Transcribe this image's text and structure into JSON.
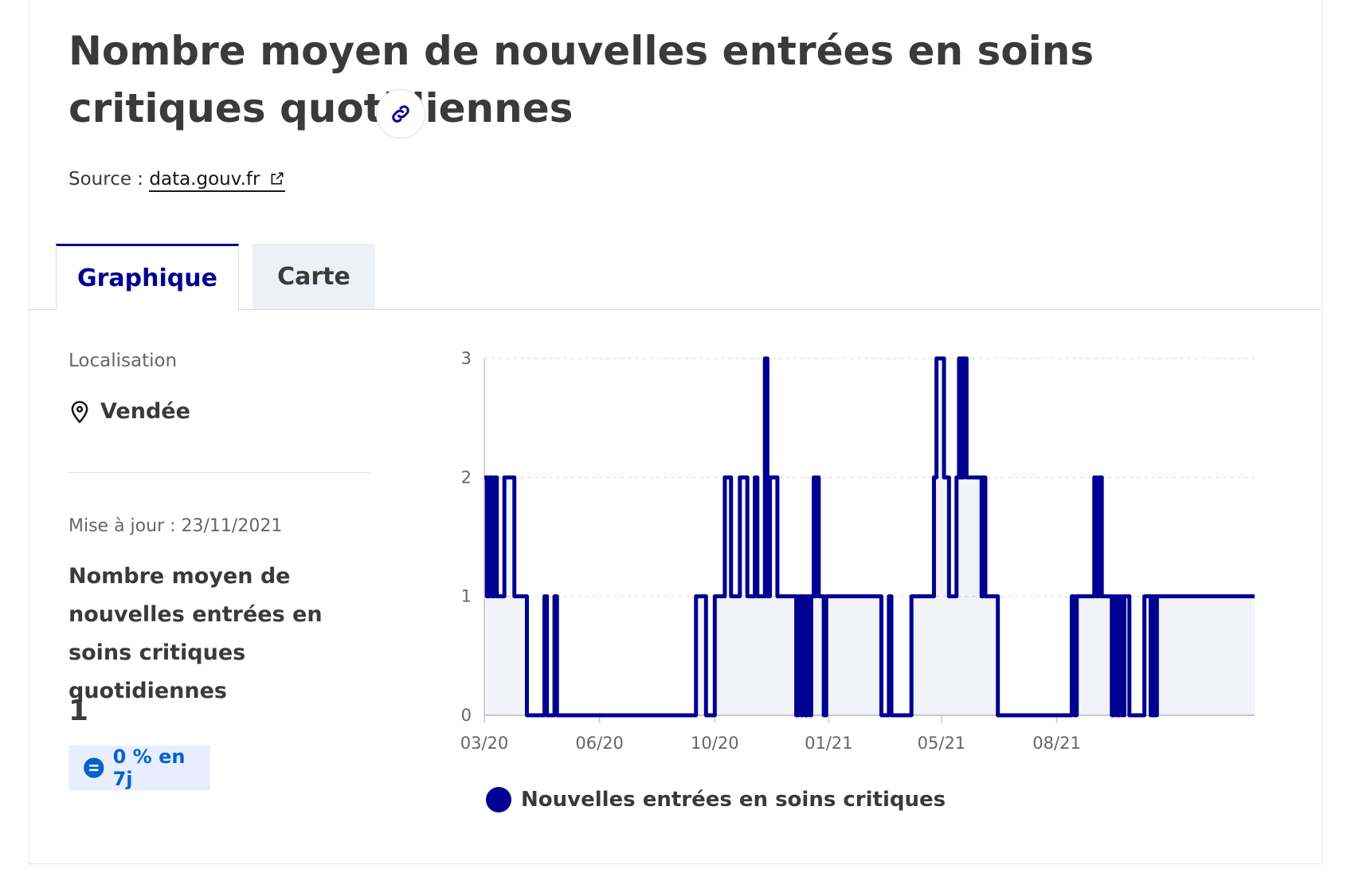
{
  "header": {
    "title": "Nombre moyen de nouvelles entrées en soins critiques quotidiennes",
    "source_label": "Source :",
    "source_link": "data.gouv.fr"
  },
  "tabs": [
    {
      "label": "Graphique",
      "active": true
    },
    {
      "label": "Carte",
      "active": false
    }
  ],
  "sidebar": {
    "location_label": "Localisation",
    "location_value": "Vendée",
    "update_label": "Mise à jour : 23/11/2021",
    "kpi_title": "Nombre moyen de nouvelles entrées en soins critiques quotidiennes",
    "kpi_value": "1",
    "badge_text": "0 % en 7j"
  },
  "colors": {
    "accent": "#000091",
    "badge_bg": "#e8edff",
    "badge_text": "#0063cb"
  },
  "icons": {
    "link": "link-icon",
    "external": "external-link-icon",
    "pin": "map-pin-icon",
    "equal": "equal-icon"
  },
  "chart_data": {
    "type": "line",
    "title": "",
    "xlabel": "",
    "ylabel": "",
    "ylim": [
      0,
      3
    ],
    "yticks": [
      "0",
      "1",
      "2",
      "3"
    ],
    "xticks": [
      {
        "date": "2020-03-18",
        "label": "03/20"
      },
      {
        "date": "2020-06-18",
        "label": "06/20"
      },
      {
        "date": "2020-09-18",
        "label": "10/20"
      },
      {
        "date": "2020-12-18",
        "label": "01/21"
      },
      {
        "date": "2021-03-18",
        "label": "05/21"
      },
      {
        "date": "2021-06-18",
        "label": "08/21"
      }
    ],
    "grid": true,
    "legend_position": "bottom",
    "series": [
      {
        "name": "Nouvelles entrées en soins critiques",
        "color": "#000091",
        "points": [
          [
            "2020-03-18",
            2
          ],
          [
            "2020-03-20",
            1
          ],
          [
            "2020-03-22",
            2
          ],
          [
            "2020-03-24",
            1
          ],
          [
            "2020-03-26",
            2
          ],
          [
            "2020-03-28",
            1
          ],
          [
            "2020-04-01",
            1
          ],
          [
            "2020-04-03",
            2
          ],
          [
            "2020-04-07",
            2
          ],
          [
            "2020-04-09",
            2
          ],
          [
            "2020-04-11",
            1
          ],
          [
            "2020-04-18",
            1
          ],
          [
            "2020-04-21",
            0
          ],
          [
            "2020-05-03",
            0
          ],
          [
            "2020-05-05",
            1
          ],
          [
            "2020-05-07",
            0
          ],
          [
            "2020-05-11",
            0
          ],
          [
            "2020-05-13",
            1
          ],
          [
            "2020-05-15",
            0
          ],
          [
            "2020-09-01",
            0
          ],
          [
            "2020-09-03",
            1
          ],
          [
            "2020-09-09",
            1
          ],
          [
            "2020-09-11",
            0
          ],
          [
            "2020-09-16",
            0
          ],
          [
            "2020-09-18",
            1
          ],
          [
            "2020-09-24",
            1
          ],
          [
            "2020-09-26",
            2
          ],
          [
            "2020-09-29",
            2
          ],
          [
            "2020-10-01",
            1
          ],
          [
            "2020-10-06",
            1
          ],
          [
            "2020-10-08",
            2
          ],
          [
            "2020-10-12",
            2
          ],
          [
            "2020-10-14",
            1
          ],
          [
            "2020-10-18",
            1
          ],
          [
            "2020-10-20",
            2
          ],
          [
            "2020-10-22",
            1
          ],
          [
            "2020-10-26",
            1
          ],
          [
            "2020-10-28",
            3
          ],
          [
            "2020-10-30",
            1
          ],
          [
            "2020-11-01",
            2
          ],
          [
            "2020-11-05",
            2
          ],
          [
            "2020-11-07",
            1
          ],
          [
            "2020-11-20",
            1
          ],
          [
            "2020-11-22",
            0
          ],
          [
            "2020-11-24",
            1
          ],
          [
            "2020-11-26",
            0
          ],
          [
            "2020-11-27",
            1
          ],
          [
            "2020-11-29",
            0
          ],
          [
            "2020-12-01",
            1
          ],
          [
            "2020-12-03",
            0
          ],
          [
            "2020-12-04",
            1
          ],
          [
            "2020-12-06",
            2
          ],
          [
            "2020-12-07",
            1
          ],
          [
            "2020-12-08",
            2
          ],
          [
            "2020-12-10",
            1
          ],
          [
            "2020-12-12",
            1
          ],
          [
            "2020-12-14",
            0
          ],
          [
            "2020-12-16",
            1
          ],
          [
            "2021-01-27",
            1
          ],
          [
            "2021-01-29",
            0
          ],
          [
            "2021-02-02",
            0
          ],
          [
            "2021-02-04",
            1
          ],
          [
            "2021-02-06",
            0
          ],
          [
            "2021-02-20",
            0
          ],
          [
            "2021-02-22",
            1
          ],
          [
            "2021-03-10",
            1
          ],
          [
            "2021-03-12",
            2
          ],
          [
            "2021-03-14",
            3
          ],
          [
            "2021-03-18",
            3
          ],
          [
            "2021-03-20",
            2
          ],
          [
            "2021-03-22",
            2
          ],
          [
            "2021-03-24",
            1
          ],
          [
            "2021-03-28",
            1
          ],
          [
            "2021-03-30",
            2
          ],
          [
            "2021-04-01",
            3
          ],
          [
            "2021-04-02",
            2
          ],
          [
            "2021-04-03",
            3
          ],
          [
            "2021-04-04",
            2
          ],
          [
            "2021-04-05",
            3
          ],
          [
            "2021-04-07",
            2
          ],
          [
            "2021-04-15",
            2
          ],
          [
            "2021-04-17",
            2
          ],
          [
            "2021-04-19",
            1
          ],
          [
            "2021-04-20",
            2
          ],
          [
            "2021-04-22",
            1
          ],
          [
            "2021-04-30",
            1
          ],
          [
            "2021-05-02",
            0
          ],
          [
            "2021-06-28",
            0
          ],
          [
            "2021-06-30",
            1
          ],
          [
            "2021-07-02",
            0
          ],
          [
            "2021-07-04",
            1
          ],
          [
            "2021-07-16",
            1
          ],
          [
            "2021-07-18",
            2
          ],
          [
            "2021-07-20",
            1
          ],
          [
            "2021-07-22",
            2
          ],
          [
            "2021-07-24",
            1
          ],
          [
            "2021-07-30",
            1
          ],
          [
            "2021-08-01",
            0
          ],
          [
            "2021-08-03",
            1
          ],
          [
            "2021-08-05",
            0
          ],
          [
            "2021-08-07",
            1
          ],
          [
            "2021-08-09",
            0
          ],
          [
            "2021-08-11",
            1
          ],
          [
            "2021-08-13",
            1
          ],
          [
            "2021-08-15",
            0
          ],
          [
            "2021-08-25",
            0
          ],
          [
            "2021-08-27",
            1
          ],
          [
            "2021-08-30",
            1
          ],
          [
            "2021-09-01",
            0
          ],
          [
            "2021-09-02",
            1
          ],
          [
            "2021-09-03",
            0
          ],
          [
            "2021-09-04",
            1
          ],
          [
            "2021-09-05",
            0
          ],
          [
            "2021-09-06",
            1
          ],
          [
            "2021-11-23",
            1
          ]
        ]
      }
    ]
  }
}
